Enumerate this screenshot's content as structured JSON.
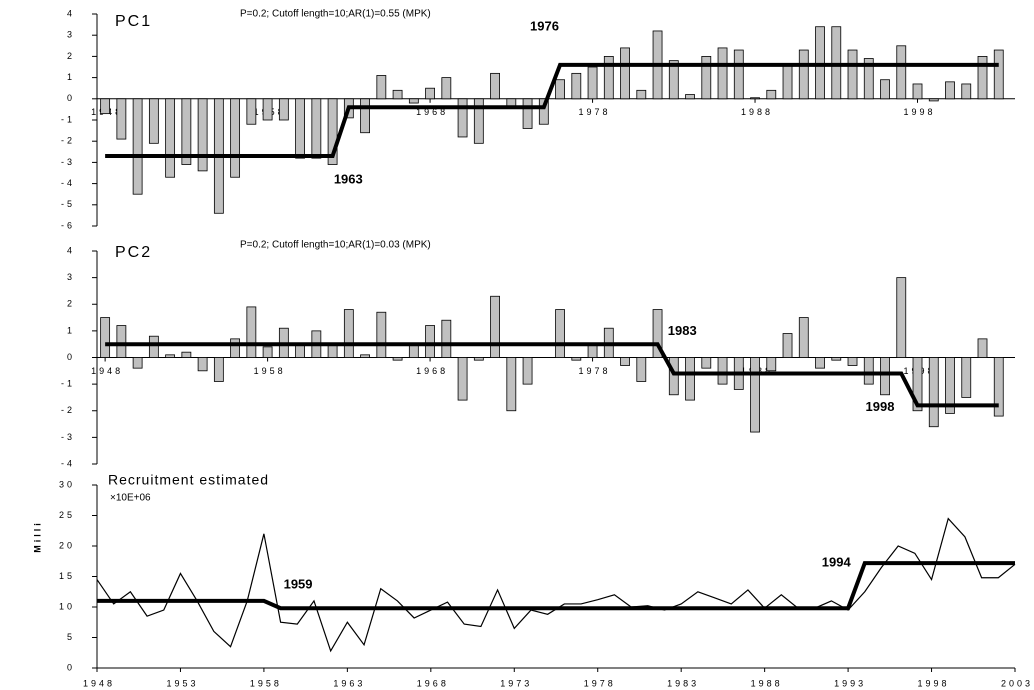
{
  "chart_data": [
    {
      "type": "bar",
      "title": "PC1",
      "subtitle": "P=0.2; Cutoff length=10;AR(1)=0.55 (MPK)",
      "x": [
        1948,
        1949,
        1950,
        1951,
        1952,
        1953,
        1954,
        1955,
        1956,
        1957,
        1958,
        1959,
        1960,
        1961,
        1962,
        1963,
        1964,
        1965,
        1966,
        1967,
        1968,
        1969,
        1970,
        1971,
        1972,
        1973,
        1974,
        1975,
        1976,
        1977,
        1978,
        1979,
        1980,
        1981,
        1982,
        1983,
        1984,
        1985,
        1986,
        1987,
        1988,
        1989,
        1990,
        1991,
        1992,
        1993,
        1994,
        1995,
        1996,
        1997,
        1998,
        1999,
        2000,
        2001,
        2002,
        2003
      ],
      "values": [
        -0.7,
        -1.9,
        -4.5,
        -2.1,
        -3.7,
        -3.1,
        -3.4,
        -5.4,
        -3.7,
        -1.2,
        -1.0,
        -1.0,
        -2.8,
        -2.8,
        -3.1,
        -0.9,
        -1.6,
        1.1,
        0.4,
        -0.2,
        0.5,
        1.0,
        -1.8,
        -2.1,
        1.2,
        -0.4,
        -1.4,
        -1.2,
        0.9,
        1.2,
        1.5,
        2.0,
        2.4,
        0.4,
        3.2,
        1.8,
        0.2,
        2.0,
        2.4,
        2.3,
        0.05,
        0.4,
        1.6,
        2.3,
        3.4,
        3.4,
        2.3,
        1.9,
        0.9,
        2.5,
        0.7,
        -0.1,
        0.8,
        0.7,
        2.0,
        2.3
      ],
      "color": "#c0c0c0",
      "regimes": [
        {
          "start": 1948,
          "end": 1962,
          "value": -2.7
        },
        {
          "start": 1963,
          "end": 1975,
          "value": -0.4
        },
        {
          "start": 1976,
          "end": 2003,
          "value": 1.6
        }
      ],
      "annotations": [
        {
          "text": "1963",
          "x": 1963
        },
        {
          "text": "1976",
          "x": 1976
        }
      ],
      "xlim": [
        1947.5,
        2004
      ],
      "xticks": [
        1948,
        1958,
        1968,
        1978,
        1988,
        1998
      ],
      "ylim": [
        -6,
        4
      ],
      "yticks": [
        -6,
        -5,
        -4,
        -3,
        -2,
        -1,
        0,
        1,
        2,
        3,
        4
      ]
    },
    {
      "type": "bar",
      "title": "PC2",
      "subtitle": "P=0.2; Cutoff length=10;AR(1)=0.03 (MPK)",
      "x": [
        1948,
        1949,
        1950,
        1951,
        1952,
        1953,
        1954,
        1955,
        1956,
        1957,
        1958,
        1959,
        1960,
        1961,
        1962,
        1963,
        1964,
        1965,
        1966,
        1967,
        1968,
        1969,
        1970,
        1971,
        1972,
        1973,
        1974,
        1975,
        1976,
        1977,
        1978,
        1979,
        1980,
        1981,
        1982,
        1983,
        1984,
        1985,
        1986,
        1987,
        1988,
        1989,
        1990,
        1991,
        1992,
        1993,
        1994,
        1995,
        1996,
        1997,
        1998,
        1999,
        2000,
        2001,
        2002,
        2003
      ],
      "values": [
        1.5,
        1.2,
        -0.4,
        0.8,
        0.1,
        0.2,
        -0.5,
        -0.9,
        0.7,
        1.9,
        0.4,
        1.1,
        0.5,
        1.0,
        0.5,
        1.8,
        0.1,
        1.7,
        -0.1,
        0.5,
        1.2,
        1.4,
        -1.6,
        -0.1,
        2.3,
        -2.0,
        -1.0,
        0.0,
        1.8,
        -0.1,
        0.5,
        1.1,
        -0.3,
        -0.9,
        1.8,
        -1.4,
        -1.6,
        -0.4,
        -1.0,
        -1.2,
        -2.8,
        -0.5,
        0.9,
        1.5,
        -0.4,
        -0.1,
        -0.3,
        -1.0,
        -1.4,
        3.0,
        -2.0,
        -2.6,
        -2.1,
        -1.5,
        0.7,
        -2.2
      ],
      "color": "#c0c0c0",
      "regimes": [
        {
          "start": 1948,
          "end": 1982,
          "value": 0.5
        },
        {
          "start": 1983,
          "end": 1997,
          "value": -0.6
        },
        {
          "start": 1998,
          "end": 2003,
          "value": -1.8
        }
      ],
      "annotations": [
        {
          "text": "1983",
          "x": 1983
        },
        {
          "text": "1998",
          "x": 1998
        }
      ],
      "xlim": [
        1947.5,
        2004
      ],
      "xticks": [
        1948,
        1958,
        1968,
        1978,
        1988,
        1998
      ],
      "ylim": [
        -4,
        4
      ],
      "yticks": [
        -4,
        -3,
        -2,
        -1,
        0,
        1,
        2,
        3,
        4
      ]
    },
    {
      "type": "line",
      "title": "Recruitment estimated",
      "subtitle": "×10E+06",
      "ylabel": "Milli",
      "x": [
        1948,
        1949,
        1950,
        1951,
        1952,
        1953,
        1954,
        1955,
        1956,
        1957,
        1958,
        1959,
        1960,
        1961,
        1962,
        1963,
        1964,
        1965,
        1966,
        1967,
        1968,
        1969,
        1970,
        1971,
        1972,
        1973,
        1974,
        1975,
        1976,
        1977,
        1978,
        1979,
        1980,
        1981,
        1982,
        1983,
        1984,
        1985,
        1986,
        1987,
        1988,
        1989,
        1990,
        1991,
        1992,
        1993,
        1994,
        1995,
        1996,
        1997,
        1998,
        1999,
        2000,
        2001,
        2002,
        2003
      ],
      "values": [
        14.5,
        10.5,
        12.5,
        8.5,
        9.5,
        15.5,
        11,
        6,
        3.5,
        11,
        22,
        7.5,
        7.2,
        11,
        2.8,
        7.5,
        3.8,
        13,
        11,
        8.2,
        9.5,
        10.8,
        7.2,
        6.8,
        12.8,
        6.5,
        9.5,
        8.8,
        10.5,
        10.5,
        11.2,
        12,
        10,
        10.2,
        9.5,
        10.5,
        12.5,
        11.5,
        10.5,
        12.8,
        9.8,
        12,
        9.8,
        9.8,
        11,
        9.5,
        12.5,
        16.5,
        20,
        18.8,
        14.5,
        24.5,
        21.5,
        14.8,
        14.8,
        17
      ],
      "color": "#000000",
      "regimes": [
        {
          "start": 1948,
          "end": 1958,
          "value": 11
        },
        {
          "start": 1959,
          "end": 1993,
          "value": 9.8
        },
        {
          "start": 1994,
          "end": 2003,
          "value": 17.2
        }
      ],
      "annotations": [
        {
          "text": "1959",
          "x": 1959
        },
        {
          "text": "1994",
          "x": 1994
        }
      ],
      "xlim": [
        1948,
        2003
      ],
      "xticks": [
        1948,
        1953,
        1958,
        1963,
        1968,
        1973,
        1978,
        1983,
        1988,
        1993,
        1998,
        2003
      ],
      "ylim": [
        0,
        30
      ],
      "yticks": [
        0,
        5,
        10,
        15,
        20,
        25,
        30
      ]
    }
  ]
}
